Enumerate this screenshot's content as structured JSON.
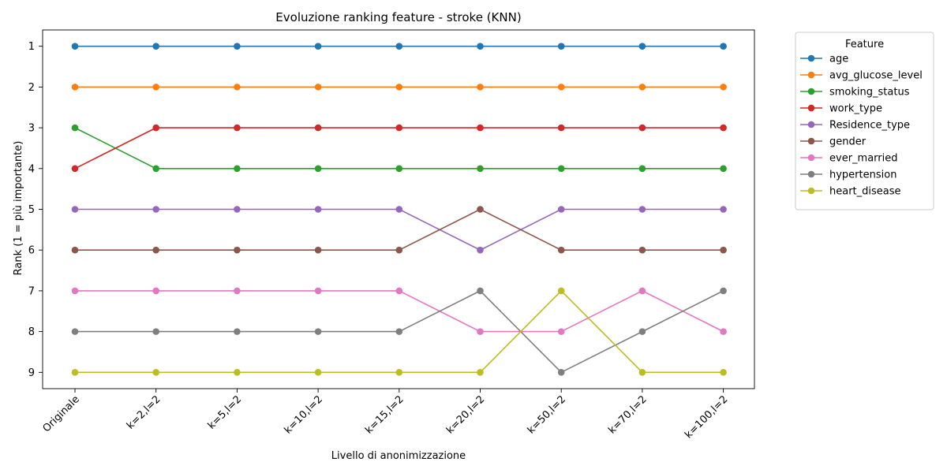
{
  "chart_data": {
    "type": "line",
    "title": "Evoluzione ranking feature - stroke (KNN)",
    "xlabel": "Livello di anonimizzazione",
    "ylabel": "Rank (1 = più importante)",
    "categories": [
      "Originale",
      "k=2,l=2",
      "k=5,l=2",
      "k=10,l=2",
      "k=15,l=2",
      "k=20,l=2",
      "k=50,l=2",
      "k=70,l=2",
      "k=100,l=2"
    ],
    "yticks": [
      1,
      2,
      3,
      4,
      5,
      6,
      7,
      8,
      9
    ],
    "ylim": [
      9.4,
      0.6
    ],
    "y_inverted": true,
    "grid": false,
    "legend": {
      "title": "Feature",
      "placement": "outside-right"
    },
    "series": [
      {
        "name": "age",
        "color": "#1f77b4",
        "values": [
          1,
          1,
          1,
          1,
          1,
          1,
          1,
          1,
          1
        ]
      },
      {
        "name": "avg_glucose_level",
        "color": "#ff7f0e",
        "values": [
          2,
          2,
          2,
          2,
          2,
          2,
          2,
          2,
          2
        ]
      },
      {
        "name": "smoking_status",
        "color": "#2ca02c",
        "values": [
          3,
          4,
          4,
          4,
          4,
          4,
          4,
          4,
          4
        ]
      },
      {
        "name": "work_type",
        "color": "#d62728",
        "values": [
          4,
          3,
          3,
          3,
          3,
          3,
          3,
          3,
          3
        ]
      },
      {
        "name": "Residence_type",
        "color": "#9467bd",
        "values": [
          5,
          5,
          5,
          5,
          5,
          6,
          5,
          5,
          5
        ]
      },
      {
        "name": "gender",
        "color": "#8c564b",
        "values": [
          6,
          6,
          6,
          6,
          6,
          5,
          6,
          6,
          6
        ]
      },
      {
        "name": "ever_married",
        "color": "#e377c2",
        "values": [
          7,
          7,
          7,
          7,
          7,
          8,
          8,
          7,
          8
        ]
      },
      {
        "name": "hypertension",
        "color": "#7f7f7f",
        "values": [
          8,
          8,
          8,
          8,
          8,
          7,
          9,
          8,
          7
        ]
      },
      {
        "name": "heart_disease",
        "color": "#bcbd22",
        "values": [
          9,
          9,
          9,
          9,
          9,
          9,
          7,
          9,
          9
        ]
      }
    ]
  }
}
